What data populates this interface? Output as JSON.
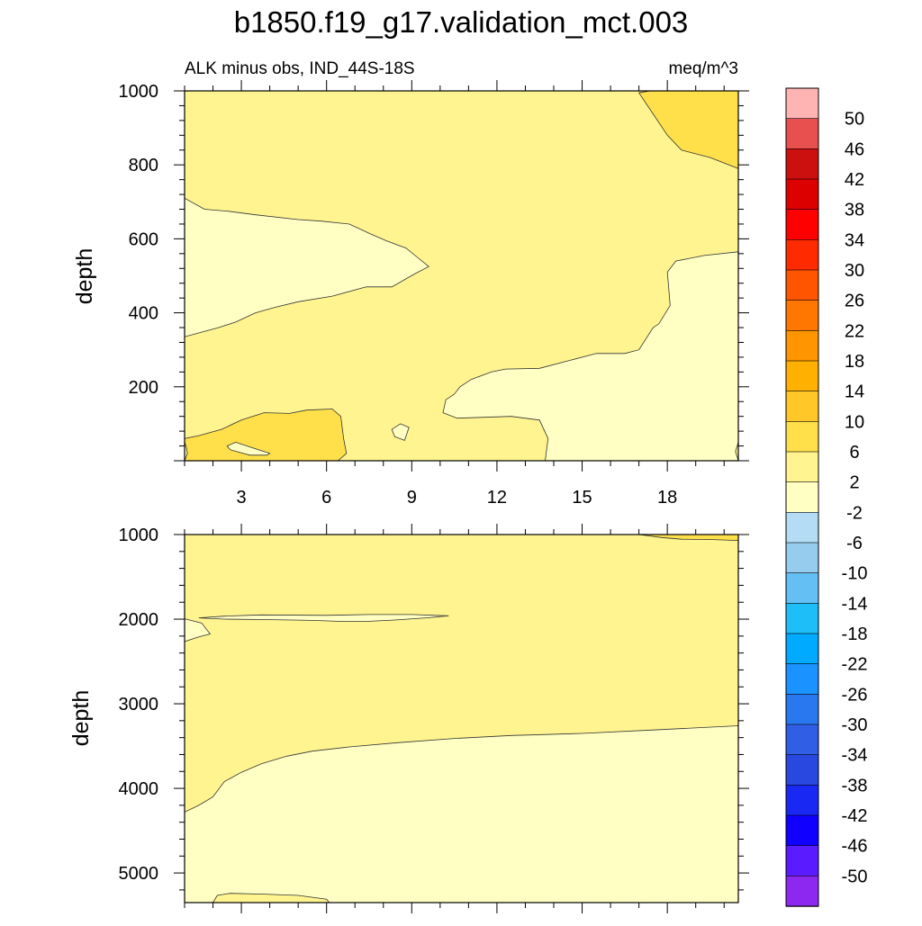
{
  "page": {
    "title": "b1850.f19_g17.validation_mct.003"
  },
  "panels": {
    "top": {
      "subtitle_left": "ALK minus obs, IND_44S-18S",
      "subtitle_right": "meq/m^3",
      "ylabel": "depth"
    },
    "bottom": {
      "ylabel": "depth"
    }
  },
  "colors": {
    "fill_2_6": "#fff490",
    "fill_m2_2": "#ffffc4",
    "fill_6_10": "#ffe04a",
    "contour": "#333333"
  },
  "colorbar": {
    "levels": [
      "50",
      "46",
      "42",
      "38",
      "34",
      "30",
      "26",
      "22",
      "18",
      "14",
      "10",
      "6",
      "2",
      "-2",
      "-6",
      "-10",
      "-14",
      "-18",
      "-22",
      "-26",
      "-30",
      "-34",
      "-38",
      "-42",
      "-46",
      "-50"
    ],
    "colors": [
      "#ffb4b4",
      "#e85050",
      "#cc1010",
      "#dd0000",
      "#ff0000",
      "#ff2a00",
      "#ff5500",
      "#ff7700",
      "#ff9500",
      "#ffb000",
      "#ffc828",
      "#ffe04a",
      "#fff490",
      "#ffffc4",
      "#b4dcf4",
      "#96ccee",
      "#64c0f4",
      "#1ebef8",
      "#00aaff",
      "#1a92ff",
      "#2a78f0",
      "#305ee4",
      "#2848e0",
      "#1a28f4",
      "#1000ff",
      "#5a1cff",
      "#8c28f0"
    ]
  },
  "chart_data": [
    {
      "type": "contour",
      "xlim": [
        1,
        20.5
      ],
      "ylim": [
        1000,
        0
      ],
      "x_ticks": [
        3,
        6,
        9,
        12,
        15,
        18
      ],
      "x_tick_labels": [
        "3",
        "6",
        "9",
        "12",
        "15",
        "18"
      ],
      "y_ticks": [
        200,
        400,
        600,
        800,
        1000
      ],
      "y_tick_labels": [
        "200",
        "400",
        "600",
        "800",
        "1000"
      ],
      "ylabel": "depth",
      "regions": [
        {
          "level": "2_6",
          "points": [
            [
              1,
              0
            ],
            [
              20.5,
              0
            ],
            [
              20.5,
              1000
            ],
            [
              1,
              1000
            ]
          ]
        },
        {
          "level": "6_10",
          "points": [
            [
              1,
              0
            ],
            [
              6,
              0
            ],
            [
              6.4,
              0
            ],
            [
              6.7,
              20
            ],
            [
              6.6,
              60
            ],
            [
              6.5,
              120
            ],
            [
              6.2,
              140
            ],
            [
              5.3,
              137
            ],
            [
              4.7,
              128
            ],
            [
              3.8,
              130
            ],
            [
              3,
              110
            ],
            [
              2.3,
              85
            ],
            [
              1.5,
              68
            ],
            [
              1,
              60
            ]
          ]
        },
        {
          "level": "m2_2",
          "points": [
            [
              3.3,
              15
            ],
            [
              3.9,
              15
            ],
            [
              4,
              20
            ],
            [
              3.6,
              30
            ],
            [
              3.2,
              40
            ],
            [
              2.8,
              50
            ],
            [
              2.5,
              40
            ],
            [
              2.6,
              30
            ]
          ]
        },
        {
          "level": "m2_2",
          "points": [
            [
              8.4,
              65
            ],
            [
              8.75,
              55
            ],
            [
              8.9,
              90
            ],
            [
              8.6,
              100
            ],
            [
              8.3,
              85
            ]
          ]
        },
        {
          "level": "m2_2",
          "points": [
            [
              13.7,
              0
            ],
            [
              20.5,
              0
            ],
            [
              20.5,
              565
            ],
            [
              19.3,
              555
            ],
            [
              18.3,
              540
            ],
            [
              18,
              510
            ],
            [
              18.1,
              420
            ],
            [
              17.7,
              370
            ],
            [
              17.5,
              360
            ],
            [
              17,
              300
            ],
            [
              16.5,
              290
            ],
            [
              15.5,
              290
            ],
            [
              14.5,
              270
            ],
            [
              13.5,
              250
            ],
            [
              12.3,
              248
            ],
            [
              11.8,
              240
            ],
            [
              11.1,
              220
            ],
            [
              10.7,
              200
            ],
            [
              10.5,
              180
            ],
            [
              10.2,
              165
            ],
            [
              10.1,
              130
            ],
            [
              10.6,
              115
            ],
            [
              12.5,
              120
            ],
            [
              13.5,
              110
            ],
            [
              13.8,
              60
            ],
            [
              13.7,
              0
            ]
          ]
        },
        {
          "level": "m2_2",
          "points": [
            [
              1,
              335
            ],
            [
              2.2,
              360
            ],
            [
              2.8,
              375
            ],
            [
              3.5,
              400
            ],
            [
              4.2,
              415
            ],
            [
              5,
              430
            ],
            [
              6.2,
              445
            ],
            [
              7.4,
              470
            ],
            [
              8.3,
              470
            ],
            [
              9.1,
              505
            ],
            [
              9.6,
              525
            ],
            [
              9.2,
              550
            ],
            [
              8.8,
              575
            ],
            [
              8.1,
              595
            ],
            [
              7.5,
              615
            ],
            [
              6.8,
              640
            ],
            [
              5.8,
              648
            ],
            [
              5,
              652
            ],
            [
              3.5,
              665
            ],
            [
              2.5,
              675
            ],
            [
              1.7,
              680
            ],
            [
              1,
              710
            ]
          ]
        },
        {
          "level": "6_10",
          "points": [
            [
              20.5,
              790
            ],
            [
              20.5,
              1000
            ],
            [
              17.4,
              1000
            ],
            [
              17,
              995
            ],
            [
              18,
              880
            ],
            [
              18.5,
              840
            ],
            [
              19.5,
              820
            ]
          ]
        },
        {
          "level": "2_6",
          "points": [
            [
              1,
              0
            ],
            [
              1.1,
              20
            ],
            [
              1.05,
              40
            ],
            [
              1,
              50
            ]
          ]
        },
        {
          "level": "2_6",
          "points": [
            [
              20.5,
              0
            ],
            [
              20.4,
              25
            ],
            [
              20.5,
              50
            ]
          ]
        }
      ]
    },
    {
      "type": "contour",
      "xlim": [
        1,
        20.5
      ],
      "ylim": [
        1000,
        5350
      ],
      "x_ticks": [
        3,
        6,
        9,
        12,
        15,
        18
      ],
      "y_ticks": [
        1000,
        2000,
        3000,
        4000,
        5000
      ],
      "y_tick_labels": [
        "1000",
        "2000",
        "3000",
        "4000",
        "5000"
      ],
      "ylabel": "depth",
      "regions": [
        {
          "level": "2_6",
          "points": [
            [
              1,
              1000
            ],
            [
              20.5,
              1000
            ],
            [
              20.5,
              5350
            ],
            [
              1,
              5350
            ]
          ]
        },
        {
          "level": "6_10",
          "points": [
            [
              17,
              1000
            ],
            [
              20.5,
              1000
            ],
            [
              20.5,
              1070
            ],
            [
              19.6,
              1060
            ],
            [
              18.5,
              1055
            ],
            [
              17.8,
              1035
            ]
          ]
        },
        {
          "level": "m2_2",
          "points": [
            [
              1.5,
              1985
            ],
            [
              2.4,
              1965
            ],
            [
              3.7,
              1950
            ],
            [
              6,
              1955
            ],
            [
              7.5,
              1945
            ],
            [
              9,
              1945
            ],
            [
              10.3,
              1960
            ],
            [
              9.5,
              1985
            ],
            [
              8.4,
              2010
            ],
            [
              7.5,
              2025
            ],
            [
              6.4,
              2025
            ],
            [
              5.5,
              2015
            ],
            [
              3.8,
              2005
            ],
            [
              2.4,
              2000
            ]
          ]
        },
        {
          "level": "m2_2",
          "points": [
            [
              1,
              1995
            ],
            [
              1.6,
              2045
            ],
            [
              1.9,
              2175
            ],
            [
              1.5,
              2210
            ],
            [
              1,
              2265
            ]
          ]
        },
        {
          "level": "m2_2",
          "points": [
            [
              1,
              4280
            ],
            [
              1.5,
              4200
            ],
            [
              2,
              4100
            ],
            [
              2.4,
              3920
            ],
            [
              3,
              3810
            ],
            [
              3.7,
              3710
            ],
            [
              4.6,
              3620
            ],
            [
              5.5,
              3560
            ],
            [
              6.8,
              3510
            ],
            [
              8.5,
              3460
            ],
            [
              10.5,
              3410
            ],
            [
              12.5,
              3375
            ],
            [
              15,
              3350
            ],
            [
              17.5,
              3310
            ],
            [
              20.5,
              3260
            ],
            [
              20.5,
              5350
            ],
            [
              1,
              5350
            ]
          ]
        },
        {
          "level": "2_6",
          "points": [
            [
              2,
              5350
            ],
            [
              2.15,
              5265
            ],
            [
              2.6,
              5240
            ],
            [
              3.8,
              5250
            ],
            [
              5,
              5265
            ],
            [
              6,
              5310
            ],
            [
              6.1,
              5350
            ]
          ]
        }
      ]
    }
  ]
}
